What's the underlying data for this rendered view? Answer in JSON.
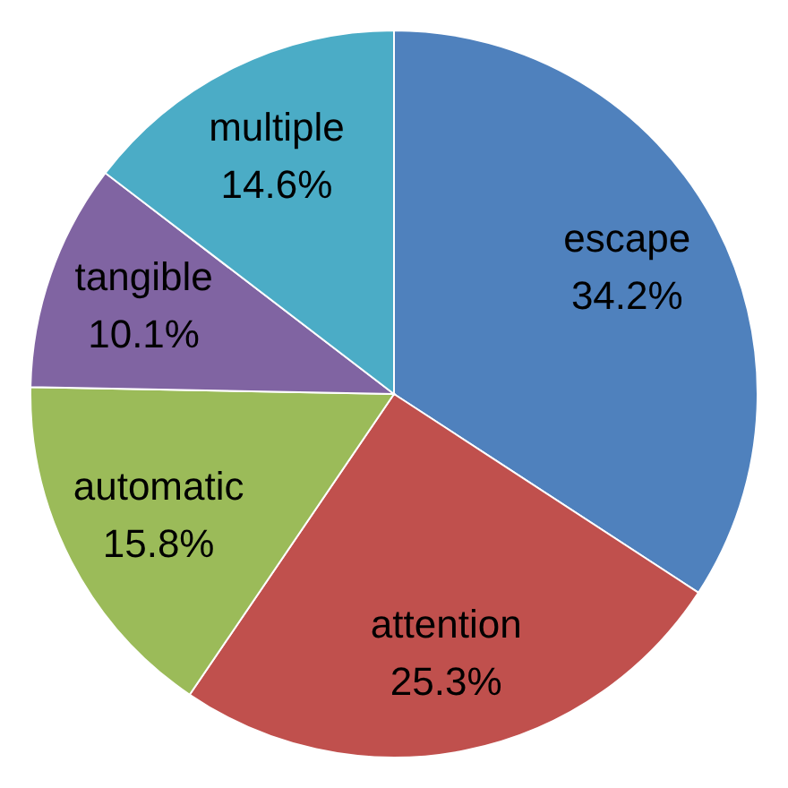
{
  "chart_data": {
    "type": "pie",
    "categories": [
      "escape",
      "attention",
      "automatic",
      "tangible",
      "multiple"
    ],
    "values": [
      34.2,
      25.3,
      15.8,
      10.1,
      14.6
    ],
    "colors": [
      "#4f81bd",
      "#c0504d",
      "#9bbb59",
      "#8064a2",
      "#4bacc6"
    ],
    "value_labels": [
      "34.2%",
      "25.3%",
      "15.8%",
      "10.1%",
      "14.6%"
    ]
  }
}
